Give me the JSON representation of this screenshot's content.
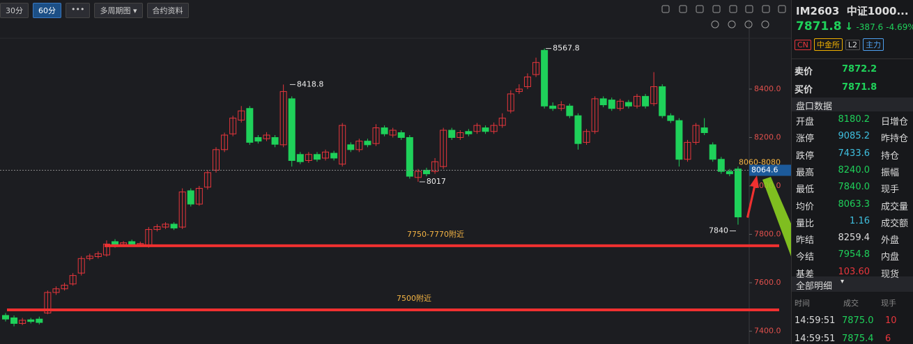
{
  "toolbar": {
    "buttons": [
      "30分",
      "60分",
      "•••",
      "多周期图 ▾",
      "合约资料"
    ]
  },
  "chart_data": {
    "type": "candlestick",
    "open": [
      7465,
      7455,
      7432,
      7447,
      7450,
      7475,
      7560,
      7575,
      7595,
      7640,
      7700,
      7708,
      7715,
      7770,
      7758,
      7770,
      7758,
      7752,
      7820,
      7830,
      7842,
      7830,
      7980,
      7925,
      7995,
      8065,
      8150,
      8215,
      8272,
      8320,
      8200,
      8195,
      8200,
      8170,
      8360,
      8130,
      8105,
      8130,
      8115,
      8135,
      8090,
      8170,
      8150,
      8185,
      8175,
      8240,
      8210,
      8220,
      8200,
      8035,
      8065,
      8060,
      8080,
      8230,
      8200,
      8225,
      8225,
      8240,
      8225,
      8250,
      8310,
      8390,
      8410,
      8460,
      8560,
      8330,
      8320,
      8330,
      8290,
      8180,
      8225,
      8360,
      8355,
      8320,
      8345,
      8330,
      8370,
      8340,
      8410,
      8290,
      8270,
      8110,
      8180,
      8240,
      8170,
      8110,
      8060,
      8070
    ],
    "high": [
      7475,
      7465,
      7455,
      7455,
      7460,
      7568,
      7585,
      7600,
      7640,
      7710,
      7720,
      7730,
      7775,
      7780,
      7772,
      7778,
      7770,
      7830,
      7842,
      7850,
      7850,
      7990,
      7990,
      8000,
      8065,
      8160,
      8220,
      8290,
      8330,
      8330,
      8210,
      8222,
      8210,
      8418.8,
      8370,
      8140,
      8140,
      8140,
      8150,
      8145,
      8260,
      8180,
      8195,
      8195,
      8255,
      8250,
      8240,
      8230,
      8210,
      8070,
      8075,
      8115,
      8240,
      8240,
      8230,
      8235,
      8260,
      8250,
      8262,
      8300,
      8395,
      8420,
      8465,
      8530,
      8567.8,
      8345,
      8350,
      8340,
      8300,
      8235,
      8370,
      8370,
      8365,
      8360,
      8355,
      8380,
      8380,
      8470,
      8420,
      8300,
      8280,
      8190,
      8260,
      8280,
      8180,
      8120,
      8070,
      8080
    ],
    "low": [
      7440,
      7420,
      7425,
      7432,
      7428,
      7470,
      7550,
      7568,
      7588,
      7630,
      7692,
      7700,
      7708,
      7745,
      7750,
      7752,
      7750,
      7745,
      7812,
      7822,
      7818,
      7822,
      7915,
      7918,
      7985,
      8055,
      8140,
      8205,
      8262,
      8170,
      8175,
      8185,
      8160,
      8160,
      8080,
      8090,
      8095,
      8100,
      8105,
      8105,
      8080,
      8140,
      8140,
      8160,
      8165,
      8205,
      8200,
      8190,
      8030,
      8017,
      8040,
      8050,
      8070,
      8190,
      8190,
      8205,
      8215,
      8215,
      8215,
      8240,
      8300,
      8380,
      8400,
      8450,
      8320,
      8310,
      8310,
      8280,
      8150,
      8170,
      8215,
      8325,
      8310,
      8310,
      8320,
      8320,
      8320,
      8330,
      8280,
      8260,
      8080,
      8100,
      8170,
      8210,
      8100,
      8050,
      8040,
      7840
    ],
    "close": [
      7450,
      7432,
      7445,
      7440,
      7436,
      7560,
      7575,
      7590,
      7630,
      7700,
      7710,
      7720,
      7760,
      7755,
      7765,
      7760,
      7762,
      7820,
      7832,
      7842,
      7826,
      7975,
      7925,
      7990,
      8055,
      8150,
      8210,
      8280,
      8310,
      8180,
      8185,
      8210,
      8172,
      8390,
      8105,
      8100,
      8130,
      8110,
      8140,
      8115,
      8250,
      8150,
      8185,
      8170,
      8240,
      8215,
      8230,
      8200,
      8040,
      8060,
      8050,
      8100,
      8230,
      8200,
      8220,
      8215,
      8250,
      8225,
      8250,
      8280,
      8380,
      8400,
      8450,
      8510,
      8330,
      8320,
      8335,
      8290,
      8175,
      8225,
      8360,
      8335,
      8320,
      8350,
      8330,
      8370,
      8330,
      8410,
      8290,
      8270,
      8110,
      8180,
      8250,
      8220,
      8110,
      8060,
      8050,
      7871.8
    ],
    "up_color": "#e8363c",
    "down_color": "#1fd15a",
    "ylim": [
      7347,
      8768
    ],
    "yticks": [
      {
        "value": 8400,
        "label": "8400.0"
      },
      {
        "value": 8200,
        "label": "8200.0"
      },
      {
        "value": 8000,
        "label": "8000.0"
      },
      {
        "value": 7800,
        "label": "7800.0"
      },
      {
        "value": 7600,
        "label": "7600.0"
      },
      {
        "value": 7400,
        "label": "7400.0"
      }
    ],
    "price_marker": 8064.6,
    "zone_label": "8060-8080",
    "levels": [
      {
        "value": 7753,
        "label": "7750-7770附近"
      },
      {
        "value": 7488,
        "label": "7500附近"
      }
    ]
  },
  "sidebar": {
    "code": "IM2603",
    "name": "中证1000...",
    "price": "7871.8",
    "change": "-387.6",
    "change_pct": "-4.69%",
    "tags": [
      "CN",
      "中金所",
      "L2",
      "主力"
    ],
    "quotes": [
      [
        "卖价",
        "7872.2"
      ],
      [
        "买价",
        "7871.8"
      ]
    ],
    "section": "盘口数据",
    "rows": [
      [
        "开盘",
        "8180.2",
        "日增仓"
      ],
      [
        "涨停",
        "9085.2",
        "昨持仓"
      ],
      [
        "跌停",
        "7433.6",
        "持仓"
      ],
      [
        "最高",
        "8240.0",
        "振幅"
      ],
      [
        "最低",
        "7840.0",
        "现手"
      ],
      [
        "均价",
        "8063.3",
        "成交量"
      ],
      [
        "量比",
        "1.16",
        "成交额"
      ],
      [
        "昨结",
        "8259.4",
        "外盘"
      ],
      [
        "今结",
        "7954.8",
        "内盘"
      ],
      [
        "基差",
        "103.60",
        "现货"
      ]
    ],
    "detail_tab": "全部明细",
    "detail_header": [
      "时间",
      "成交",
      "现手"
    ],
    "trades": [
      [
        "14:59:51",
        "7875.0",
        "10"
      ],
      [
        "14:59:51",
        "7875.4",
        "6"
      ]
    ]
  }
}
